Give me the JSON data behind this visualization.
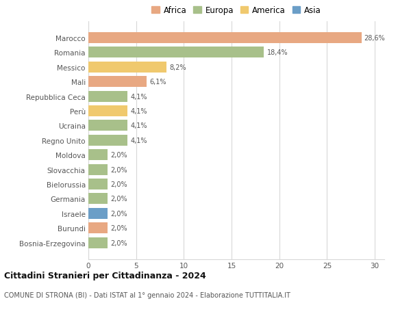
{
  "categories": [
    "Bosnia-Erzegovina",
    "Burundi",
    "Israele",
    "Germania",
    "Bielorussia",
    "Slovacchia",
    "Moldova",
    "Regno Unito",
    "Ucraina",
    "Perù",
    "Repubblica Ceca",
    "Mali",
    "Messico",
    "Romania",
    "Marocco"
  ],
  "values": [
    2.0,
    2.0,
    2.0,
    2.0,
    2.0,
    2.0,
    2.0,
    4.1,
    4.1,
    4.1,
    4.1,
    6.1,
    8.2,
    18.4,
    28.6
  ],
  "labels": [
    "2,0%",
    "2,0%",
    "2,0%",
    "2,0%",
    "2,0%",
    "2,0%",
    "2,0%",
    "4,1%",
    "4,1%",
    "4,1%",
    "4,1%",
    "6,1%",
    "8,2%",
    "18,4%",
    "28,6%"
  ],
  "colors": [
    "#a8c08a",
    "#e8a882",
    "#6b9ec7",
    "#a8c08a",
    "#a8c08a",
    "#a8c08a",
    "#a8c08a",
    "#a8c08a",
    "#a8c08a",
    "#f0c96e",
    "#a8c08a",
    "#e8a882",
    "#f0c96e",
    "#a8c08a",
    "#e8a882"
  ],
  "legend_labels": [
    "Africa",
    "Europa",
    "America",
    "Asia"
  ],
  "legend_colors": [
    "#e8a882",
    "#a8c08a",
    "#f0c96e",
    "#6b9ec7"
  ],
  "title": "Cittadini Stranieri per Cittadinanza - 2024",
  "subtitle": "COMUNE DI STRONA (BI) - Dati ISTAT al 1° gennaio 2024 - Elaborazione TUTTITALIA.IT",
  "xlim": [
    0,
    31
  ],
  "xticks": [
    0,
    5,
    10,
    15,
    20,
    25,
    30
  ],
  "bg_color": "#ffffff",
  "grid_color": "#d8d8d8",
  "bar_height": 0.75
}
